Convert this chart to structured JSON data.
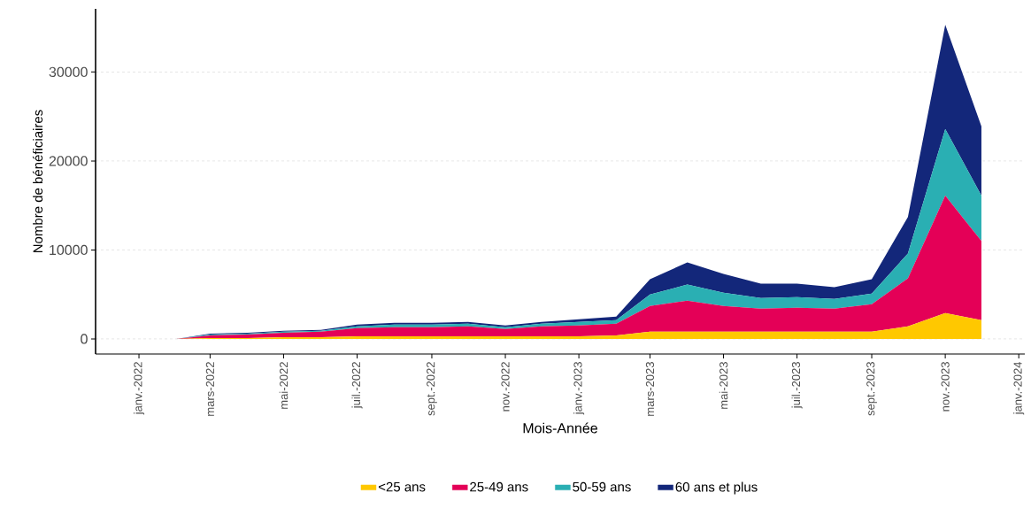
{
  "chart_data": {
    "type": "area",
    "stacked": true,
    "xlabel": "Mois-Année",
    "ylabel": "Nombre de bénéficiaires",
    "x": [
      "2022-01",
      "2022-02",
      "2022-03",
      "2022-04",
      "2022-05",
      "2022-06",
      "2022-07",
      "2022-08",
      "2022-09",
      "2022-10",
      "2022-11",
      "2022-12",
      "2023-01",
      "2023-02",
      "2023-03",
      "2023-04",
      "2023-05",
      "2023-06",
      "2023-07",
      "2023-08",
      "2023-09",
      "2023-10",
      "2023-11",
      "2023-12"
    ],
    "series": [
      {
        "name": "<25 ans",
        "color": "#ffc800",
        "values": [
          0,
          0,
          100,
          100,
          200,
          200,
          300,
          300,
          300,
          300,
          300,
          300,
          300,
          400,
          800,
          800,
          800,
          800,
          800,
          800,
          800,
          1400,
          2900,
          2100
        ]
      },
      {
        "name": "25-49 ans",
        "color": "#e40057",
        "values": [
          0,
          0,
          300,
          400,
          500,
          600,
          900,
          1000,
          1000,
          1100,
          800,
          1100,
          1200,
          1300,
          2900,
          3500,
          2900,
          2600,
          2700,
          2600,
          3100,
          5400,
          13200,
          8900
        ]
      },
      {
        "name": "50-59 ans",
        "color": "#2aafb3",
        "values": [
          0,
          0,
          100,
          100,
          100,
          100,
          200,
          300,
          300,
          300,
          200,
          300,
          400,
          400,
          1300,
          1800,
          1500,
          1200,
          1200,
          1100,
          1200,
          2800,
          7500,
          5100
        ]
      },
      {
        "name": "60 ans et plus",
        "color": "#13277a",
        "values": [
          0,
          0,
          100,
          100,
          100,
          100,
          200,
          200,
          200,
          200,
          200,
          200,
          300,
          400,
          1700,
          2500,
          2100,
          1600,
          1500,
          1300,
          1600,
          4100,
          11700,
          7800
        ]
      }
    ],
    "xlim": [
      "2021-11-26",
      "2024-01-06"
    ],
    "xticks": [
      {
        "value": "2022-01",
        "label": "janv.-2022"
      },
      {
        "value": "2022-03",
        "label": "mars-2022"
      },
      {
        "value": "2022-05",
        "label": "mai-2022"
      },
      {
        "value": "2022-07",
        "label": "juil.-2022"
      },
      {
        "value": "2022-09",
        "label": "sept.-2022"
      },
      {
        "value": "2022-11",
        "label": "nov.-2022"
      },
      {
        "value": "2023-01",
        "label": "janv.-2023"
      },
      {
        "value": "2023-03",
        "label": "mars-2023"
      },
      {
        "value": "2023-05",
        "label": "mai-2023"
      },
      {
        "value": "2023-07",
        "label": "juil.-2023"
      },
      {
        "value": "2023-09",
        "label": "sept.-2023"
      },
      {
        "value": "2023-11",
        "label": "nov.-2023"
      },
      {
        "value": "2024-01",
        "label": "janv.-2024"
      }
    ],
    "ylim": [
      -1700,
      37100
    ],
    "yticks": [
      0,
      10000,
      20000,
      30000
    ],
    "grid": "y",
    "legend": "bottom"
  }
}
